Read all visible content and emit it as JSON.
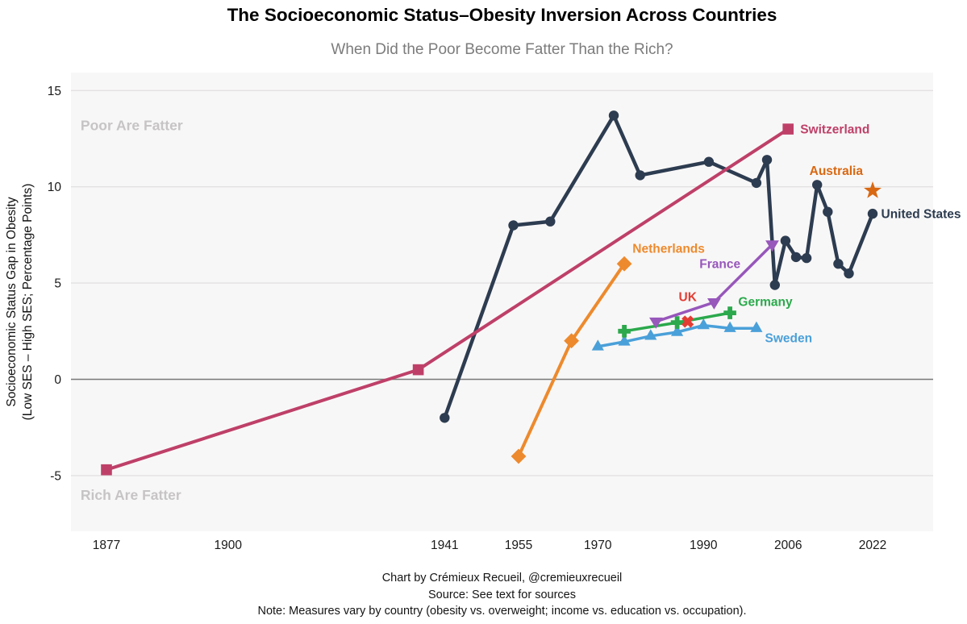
{
  "page": {
    "title": "The Socioeconomic Status–Obesity Inversion Across Countries",
    "subtitle": "When Did the Poor Become Fatter Than the Rich?",
    "footer": {
      "credit": "Chart by Crémieux Recueil, @cremieuxrecueil",
      "source": "Source: See text for sources",
      "note": "Note: Measures vary by country (obesity vs. overweight; income vs. education vs. occupation)."
    }
  },
  "chart_data": {
    "type": "line",
    "title": "The Socioeconomic Status–Obesity Inversion Across Countries",
    "subtitle": "When Did the Poor Become Fatter Than the Rich?",
    "xlabel": "",
    "ylabel_lines": [
      "Socioeconomic Status Gap in Obesity",
      "(Low SES – High SES; Percentage Points)"
    ],
    "x_ticks": [
      1877,
      1900,
      1941,
      1955,
      1970,
      1990,
      2006,
      2022
    ],
    "y_ticks": [
      15,
      10,
      5,
      0,
      -5
    ],
    "xlim": [
      1870.3,
      2033
    ],
    "ylim": [
      -7.9,
      15.9
    ],
    "grid": true,
    "zero_line": true,
    "legend": "direct-labels",
    "style": {
      "plot_bg": "#f8f7f7",
      "grid_color": "#e3e1e1",
      "zero_line_color": "#7a7a7a",
      "annotation_color": "#c6c4c4",
      "tick_color": "#1a1a1a"
    },
    "series": [
      {
        "name": "United States",
        "color": "#2d3c50",
        "marker": "circle",
        "line_width": 4.5,
        "points": [
          [
            1941,
            -2
          ],
          [
            1954,
            8
          ],
          [
            1961,
            8.2
          ],
          [
            1973,
            13.7
          ],
          [
            1978,
            10.6
          ],
          [
            1991,
            11.3
          ],
          [
            2000,
            10.2
          ],
          [
            2002,
            11.4
          ],
          [
            2003.5,
            4.9
          ],
          [
            2005.5,
            7.2
          ],
          [
            2007.5,
            6.35
          ],
          [
            2009.5,
            6.3
          ],
          [
            2011.5,
            10.1
          ],
          [
            2013.5,
            8.7
          ],
          [
            2015.5,
            6
          ],
          [
            2017.5,
            5.5
          ],
          [
            2022,
            8.6
          ]
        ],
        "label": {
          "text": "United States",
          "x": 2023.6,
          "y": 8.6,
          "anchor": "start"
        }
      },
      {
        "name": "Sweden",
        "color": "#4aa0d9",
        "marker": "triangle-up",
        "line_width": 3.5,
        "points": [
          [
            1970,
            1.7
          ],
          [
            1975,
            1.95
          ],
          [
            1980,
            2.25
          ],
          [
            1985,
            2.45
          ],
          [
            1990,
            2.8
          ],
          [
            1995,
            2.65
          ],
          [
            2000,
            2.65
          ]
        ],
        "label": {
          "text": "Sweden",
          "x": 2006.1,
          "y": 2.15,
          "anchor": "middle"
        }
      },
      {
        "name": "Germany",
        "color": "#2ba94c",
        "marker": "plus",
        "line_width": 3.5,
        "points": [
          [
            1975,
            2.5
          ],
          [
            1985,
            2.95
          ],
          [
            1995,
            3.45
          ]
        ],
        "label": {
          "text": "Germany",
          "x": 2001.7,
          "y": 4.05,
          "anchor": "middle"
        }
      },
      {
        "name": "UK",
        "color": "#e33d33",
        "marker": "x",
        "line_width": 3.5,
        "points": [
          [
            1987,
            3
          ]
        ],
        "label": {
          "text": "UK",
          "x": 1987,
          "y": 4.3,
          "anchor": "middle"
        }
      },
      {
        "name": "France",
        "color": "#9757bb",
        "marker": "triangle-down",
        "line_width": 3.5,
        "points": [
          [
            1981,
            3
          ],
          [
            1992,
            4
          ],
          [
            2003,
            7
          ]
        ],
        "label": {
          "text": "France",
          "x": 1993.1,
          "y": 6.0,
          "anchor": "middle"
        }
      },
      {
        "name": "Netherlands",
        "color": "#ed8a2d",
        "marker": "diamond",
        "line_width": 4,
        "points": [
          [
            1955,
            -4
          ],
          [
            1965,
            2
          ],
          [
            1975,
            6
          ]
        ],
        "label": {
          "text": "Netherlands",
          "x": 1983.4,
          "y": 6.8,
          "anchor": "middle"
        }
      },
      {
        "name": "Switzerland",
        "color": "#be4069",
        "marker": "square",
        "line_width": 4,
        "points": [
          [
            1877,
            -4.7
          ],
          [
            1936,
            0.5
          ],
          [
            2006,
            13
          ]
        ],
        "label": {
          "text": "Switzerland",
          "x": 2008.3,
          "y": 13.0,
          "anchor": "start"
        }
      },
      {
        "name": "Australia",
        "color": "#d96812",
        "marker": "star",
        "line_width": 4,
        "points": [
          [
            2022,
            9.8
          ]
        ],
        "label": {
          "text": "Australia",
          "x": 2015.1,
          "y": 10.85,
          "anchor": "middle"
        }
      }
    ],
    "annotations": [
      {
        "text": "Poor Are Fatter",
        "x": 1872.1,
        "y": 13.2,
        "anchor": "start"
      },
      {
        "text": "Rich Are Fatter",
        "x": 1872.1,
        "y": -6.0,
        "anchor": "start"
      }
    ]
  }
}
